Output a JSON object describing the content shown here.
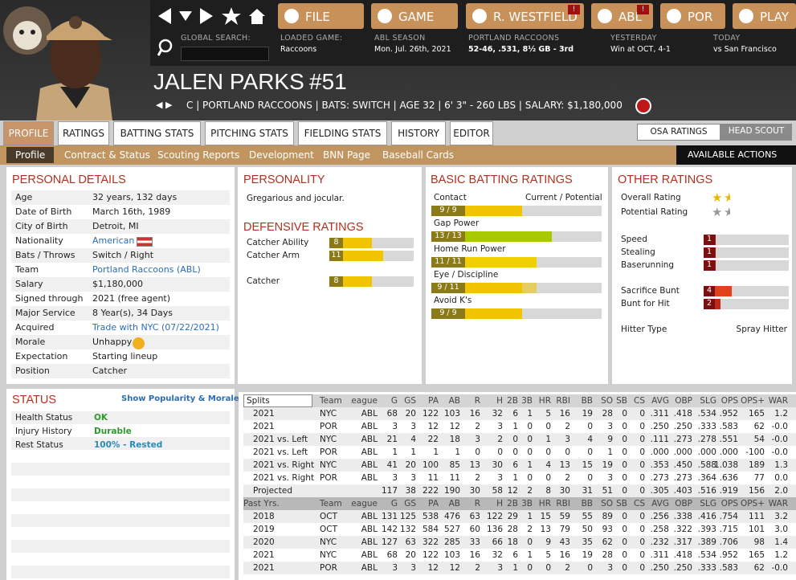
{
  "nav": {
    "buttons": [
      {
        "label": "FILE"
      },
      {
        "label": "GAME"
      },
      {
        "label": "R. WESTFIELD",
        "alert": "!"
      },
      {
        "label": "ABL",
        "alert": "!"
      },
      {
        "label": "POR"
      },
      {
        "label": "PLAY"
      }
    ],
    "info": [
      {
        "label": "GLOBAL SEARCH:"
      },
      {
        "label": "LOADED GAME:",
        "value": "Raccoons"
      },
      {
        "label": "ABL SEASON",
        "value": "Mon. Jul. 26th, 2021"
      },
      {
        "label": "PORTLAND RACCOONS",
        "value": "52-46, .531, 8½ GB - 3rd"
      },
      {
        "label": "YESTERDAY",
        "value": "Win at OCT, 4-1"
      },
      {
        "label": "TODAY",
        "value": "vs San Francisco"
      }
    ]
  },
  "player": {
    "name": "JALEN PARKS",
    "number": "#51",
    "info": "C | PORTLAND RACCOONS | BATS: SWITCH | AGE 32 | 6' 3\" - 260 LBS | SALARY: $1,180,000"
  },
  "tabs": [
    "PROFILE",
    "RATINGS",
    "BATTING STATS",
    "PITCHING STATS",
    "FIELDING STATS",
    "HISTORY",
    "EDITOR"
  ],
  "toggle": [
    "OSA RATINGS",
    "HEAD SCOUT"
  ],
  "subtabs": [
    "Profile",
    "Contract & Status",
    "Scouting Reports",
    "Development",
    "BNN Page",
    "Baseball Cards"
  ],
  "actions": "AVAILABLE ACTIONS",
  "personal": {
    "title": "PERSONAL DETAILS",
    "rows": [
      {
        "label": "Age",
        "value": "32 years, 132 days"
      },
      {
        "label": "Date of Birth",
        "value": "March 16th, 1989"
      },
      {
        "label": "City of Birth",
        "value": "Detroit, MI"
      },
      {
        "label": "Nationality",
        "value": "American",
        "color": "#2a6db5"
      },
      {
        "label": "Bats / Throws",
        "value": "Switch / Right"
      },
      {
        "label": "Team",
        "value": "Portland Raccoons (ABL)",
        "color": "#2a6db5"
      },
      {
        "label": "Salary",
        "value": "$1,180,000"
      },
      {
        "label": "Signed through",
        "value": "2021 (free agent)"
      },
      {
        "label": "Major Service",
        "value": "8 Year(s), 34 Days"
      },
      {
        "label": "Acquired",
        "value": "Trade with NYC (07/22/2021)",
        "color": "#2a6db5"
      },
      {
        "label": "Morale",
        "value": "Unhappy"
      },
      {
        "label": "Expectation",
        "value": "Starting lineup"
      },
      {
        "label": "Position",
        "value": "Catcher"
      }
    ]
  },
  "personality": {
    "title": "PERSONALITY",
    "text": "Gregarious and jocular."
  },
  "defense": {
    "title": "DEFENSIVE RATINGS",
    "rows": [
      {
        "label": "Catcher Ability",
        "value": 8
      },
      {
        "label": "Catcher Arm",
        "value": 11
      },
      {
        "label": "Catcher",
        "value": 8
      }
    ]
  },
  "batting": {
    "title": "BASIC BATTING RATINGS",
    "header": "Current / Potential",
    "rows": [
      {
        "label": "Contact",
        "current": 9,
        "potential": 9,
        "value_label": "9 / 9",
        "color": "#f0c400"
      },
      {
        "label": "Gap Power",
        "current": 13,
        "potential": 13,
        "value_label": "13 / 13",
        "color": "#a8c800"
      },
      {
        "label": "Home Run Power",
        "current": 11,
        "potential": 11,
        "value_label": "11 / 11",
        "color": "#f0d000"
      },
      {
        "label": "Eye / Discipline",
        "current": 9,
        "potential": 11,
        "value_label": "9 / 11",
        "color": "#f0c400"
      },
      {
        "label": "Avoid K's",
        "current": 9,
        "potential": 9,
        "value_label": "9 / 9",
        "color": "#f0c400"
      }
    ]
  },
  "other": {
    "title": "OTHER RATINGS",
    "stars": [
      {
        "label": "Overall Rating",
        "value": 1.5,
        "color": "#e6b800"
      },
      {
        "label": "Potential Rating",
        "value": 1.5,
        "color": "#999999"
      }
    ],
    "bars": [
      {
        "label": "Speed",
        "value": 1,
        "color": "#8b1a1a"
      },
      {
        "label": "Stealing",
        "value": 1,
        "color": "#8b1a1a"
      },
      {
        "label": "Baserunning",
        "value": 1,
        "color": "#8b1a1a"
      },
      {
        "label": "Sacrifice Bunt",
        "value": 4,
        "color": "#e0401a"
      },
      {
        "label": "Bunt for Hit",
        "value": 2,
        "color": "#c0281a"
      }
    ],
    "hitter_label": "Hitter Type",
    "hitter_value": "Spray Hitter"
  },
  "status": {
    "title": "STATUS",
    "link": "Show Popularity & Morale",
    "rows": [
      {
        "label": "Health Status",
        "value": "OK",
        "color": "#2e9a2e"
      },
      {
        "label": "Injury History",
        "value": "Durable",
        "color": "#2e9a2e"
      },
      {
        "label": "Rest Status",
        "value": "100% - Rested",
        "color": "#2a8ab8"
      }
    ]
  },
  "stats": {
    "columns": [
      "Splits",
      "Team",
      "League",
      "G",
      "GS",
      "PA",
      "AB",
      "R",
      "H",
      "2B",
      "3B",
      "HR",
      "RBI",
      "BB",
      "SO",
      "SB",
      "CS",
      "AVG",
      "OBP",
      "SLG",
      "OPS",
      "OPS+",
      "WAR"
    ],
    "rows": [
      [
        "2021",
        "NYC",
        "ABL",
        "68",
        "20",
        "122",
        "103",
        "16",
        "32",
        "6",
        "1",
        "5",
        "16",
        "19",
        "28",
        "0",
        "0",
        ".311",
        ".418",
        ".534",
        ".952",
        "165",
        "1.2"
      ],
      [
        "2021",
        "POR",
        "ABL",
        "3",
        "3",
        "12",
        "12",
        "2",
        "3",
        "1",
        "0",
        "0",
        "2",
        "0",
        "3",
        "0",
        "0",
        ".250",
        ".250",
        ".333",
        ".583",
        "62",
        "-0.0"
      ],
      [
        "2021 vs. Left",
        "NYC",
        "ABL",
        "21",
        "4",
        "22",
        "18",
        "3",
        "2",
        "0",
        "0",
        "1",
        "3",
        "4",
        "9",
        "0",
        "0",
        ".111",
        ".273",
        ".278",
        ".551",
        "54",
        "-0.0"
      ],
      [
        "2021 vs. Left",
        "POR",
        "ABL",
        "1",
        "1",
        "1",
        "1",
        "0",
        "0",
        "0",
        "0",
        "0",
        "0",
        "0",
        "1",
        "0",
        "0",
        ".000",
        ".000",
        ".000",
        ".000",
        "-100",
        "-0.0"
      ],
      [
        "2021 vs. Right",
        "NYC",
        "ABL",
        "41",
        "20",
        "100",
        "85",
        "13",
        "30",
        "6",
        "1",
        "4",
        "13",
        "15",
        "19",
        "0",
        "0",
        ".353",
        ".450",
        ".588",
        "1.038",
        "189",
        "1.3"
      ],
      [
        "2021 vs. Right",
        "POR",
        "ABL",
        "3",
        "3",
        "11",
        "11",
        "2",
        "3",
        "1",
        "0",
        "0",
        "2",
        "0",
        "3",
        "0",
        "0",
        ".273",
        ".273",
        ".364",
        ".636",
        "77",
        "0.0"
      ],
      [
        "Projected",
        null,
        null,
        "117",
        "38",
        "222",
        "190",
        "30",
        "58",
        "12",
        "2",
        "8",
        "30",
        "31",
        "51",
        "0",
        "0",
        ".305",
        ".403",
        ".516",
        ".919",
        "156",
        "2.0"
      ]
    ],
    "past_header": [
      "Past Yrs.",
      "Team",
      "League",
      "G",
      "GS",
      "PA",
      "AB",
      "R",
      "H",
      "2B",
      "3B",
      "HR",
      "RBI",
      "BB",
      "SO",
      "SB",
      "CS",
      "AVG",
      "OBP",
      "SLG",
      "OPS",
      "OPS+",
      "WAR"
    ],
    "past_rows": [
      [
        "2018",
        "OCT",
        "ABL",
        "131",
        "125",
        "538",
        "476",
        "63",
        "122",
        "29",
        "1",
        "15",
        "59",
        "55",
        "89",
        "0",
        "0",
        ".256",
        ".338",
        ".416",
        ".754",
        "111",
        "3.2"
      ],
      [
        "2019",
        "OCT",
        "ABL",
        "142",
        "132",
        "584",
        "527",
        "60",
        "136",
        "28",
        "2",
        "13",
        "79",
        "50",
        "93",
        "0",
        "0",
        ".258",
        ".322",
        ".393",
        ".715",
        "101",
        "3.0"
      ],
      [
        "2020",
        "NYC",
        "ABL",
        "127",
        "63",
        "322",
        "285",
        "33",
        "66",
        "18",
        "0",
        "9",
        "43",
        "35",
        "62",
        "0",
        "0",
        ".232",
        ".317",
        ".389",
        ".706",
        "98",
        "1.4"
      ],
      [
        "2021",
        "NYC",
        "ABL",
        "68",
        "20",
        "122",
        "103",
        "16",
        "32",
        "6",
        "1",
        "5",
        "16",
        "19",
        "28",
        "0",
        "0",
        ".311",
        ".418",
        ".534",
        ".952",
        "165",
        "1.2"
      ],
      [
        "2021",
        "POR",
        "ABL",
        "3",
        "3",
        "12",
        "12",
        "2",
        "3",
        "1",
        "0",
        "0",
        "2",
        "0",
        "3",
        "0",
        "0",
        ".250",
        ".250",
        ".333",
        ".583",
        "62",
        "-0.0"
      ]
    ]
  }
}
